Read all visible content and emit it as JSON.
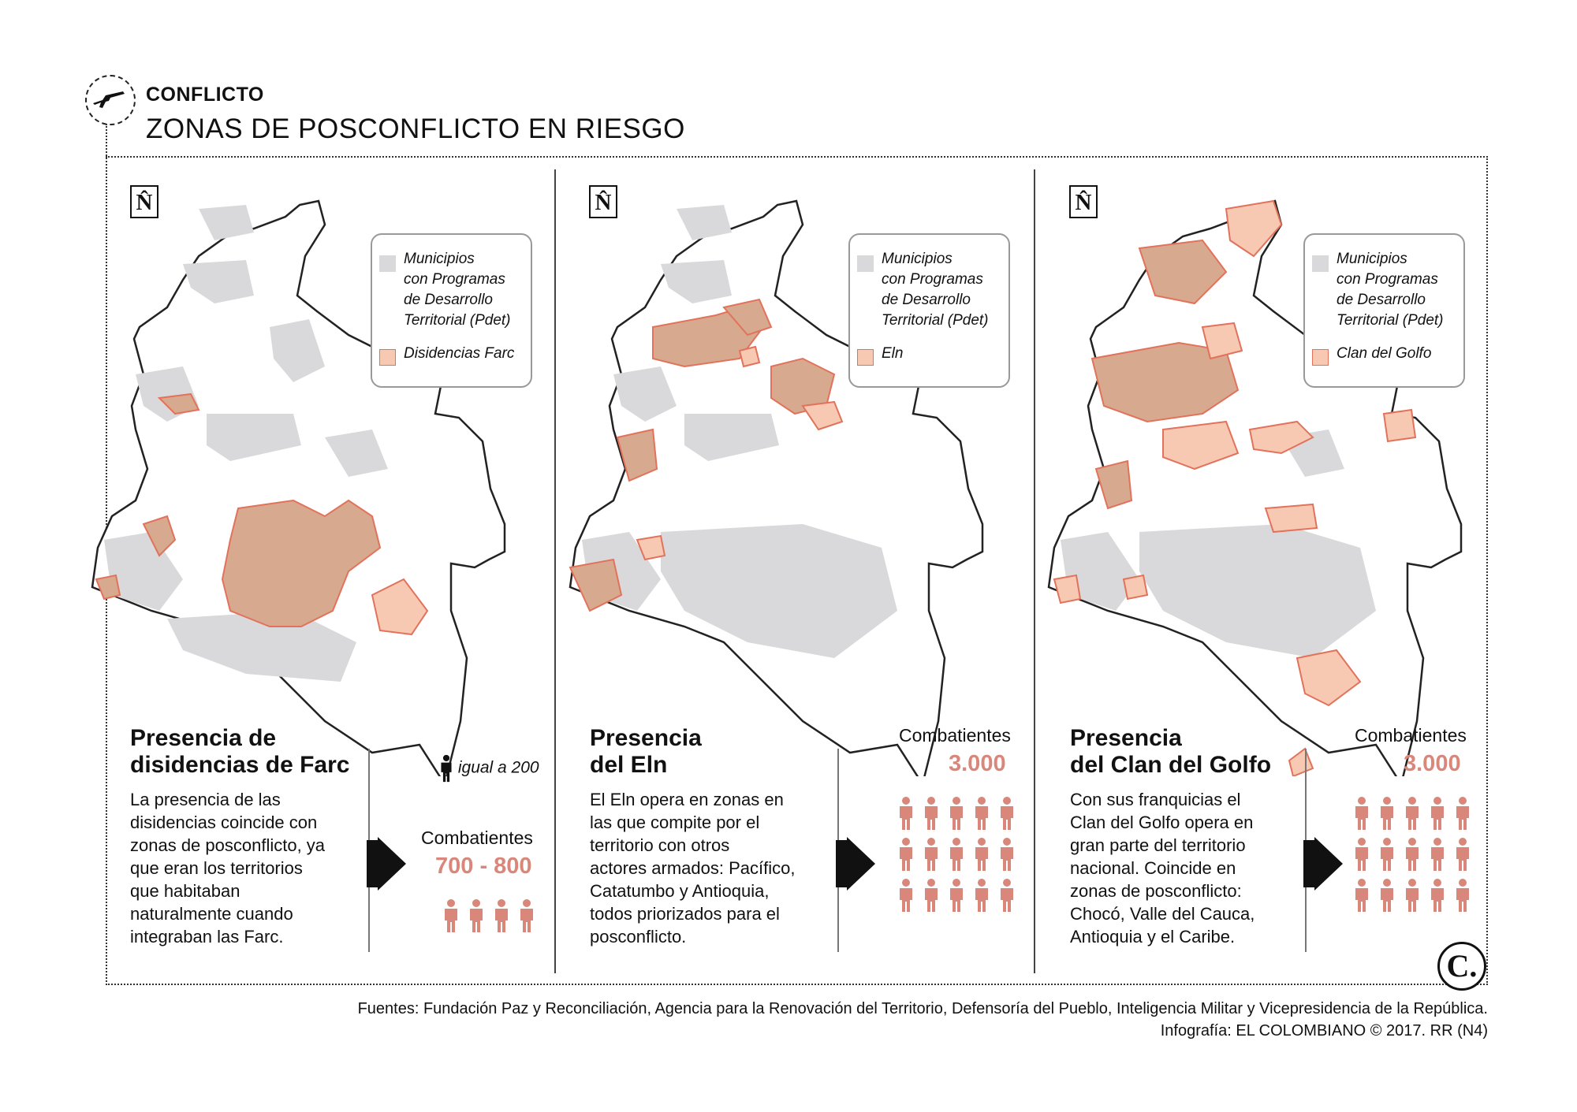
{
  "header": {
    "kicker": "CONFLICTO",
    "title": "ZONAS DE POSCONFLICTO EN RIESGO"
  },
  "colors": {
    "pdet_gray": "#d9d9db",
    "armed_group_fill": "#f8c9b2",
    "armed_group_overlap": "#d7a98f",
    "armed_group_stroke": "#e2725b",
    "combatant_figure": "#d9877a"
  },
  "north_symbol": "N̂",
  "legend": {
    "pdet_label_lines": [
      "Municipios",
      "con Programas",
      "de Desarrollo",
      "Territorial (Pdet)"
    ]
  },
  "panels": [
    {
      "legend_group": "Disidencias Farc",
      "title_lines": [
        "Presencia de",
        "disidencias de Farc"
      ],
      "body_lines": [
        "La presencia de las",
        "disidencias coincide con",
        "zonas de posconflicto, ya",
        "que eran los territorios",
        "que habitaban",
        "naturalmente cuando",
        "integraban las Farc."
      ],
      "combatants_label": "Combatientes",
      "combatants_value": "700 - 800",
      "figure_count": 4
    },
    {
      "legend_group": "Eln",
      "title_lines": [
        "Presencia",
        "del Eln"
      ],
      "body_lines": [
        "El Eln opera en zonas en",
        "las que compite por el",
        "territorio con otros",
        "actores armados: Pacífico,",
        "Catatumbo y Antioquia,",
        "todos priorizados para el",
        "posconflicto."
      ],
      "combatants_label": "Combatientes",
      "combatants_value": "3.000",
      "figure_count": 15
    },
    {
      "legend_group": "Clan del Golfo",
      "title_lines": [
        "Presencia",
        "del Clan del Golfo"
      ],
      "body_lines": [
        "Con sus franquicias el",
        "Clan del Golfo opera en",
        "gran parte del territorio",
        "nacional. Coincide en",
        "zonas de posconflicto:",
        "Chocó, Valle del Cauca,",
        "Antioquia y el Caribe."
      ],
      "combatants_label": "Combatientes",
      "combatants_value": "3.000",
      "figure_count": 15
    }
  ],
  "scale_legend": "igual a 200",
  "logo": "C.",
  "sources": {
    "line1": "Fuentes: Fundación Paz y Reconciliación, Agencia para la Renovación del Territorio, Defensoría del Pueblo, Inteligencia Militar y Vicepresidencia de la República.",
    "line2": "Infografía: EL COLOMBIANO © 2017. RR (N4)"
  }
}
